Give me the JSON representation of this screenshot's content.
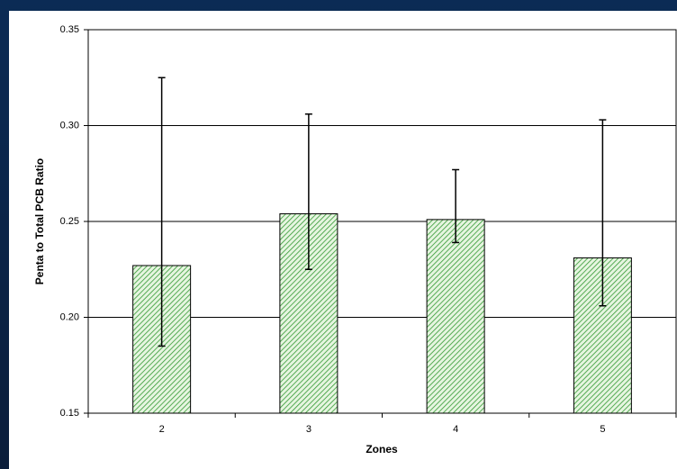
{
  "chart_data": {
    "type": "bar",
    "x_label": "Zones",
    "y_label": "Penta to Total PCB Ratio",
    "categories": [
      "2",
      "3",
      "4",
      "5"
    ],
    "values": [
      0.227,
      0.254,
      0.251,
      0.231
    ],
    "error_plus": [
      0.098,
      0.052,
      0.026,
      0.072
    ],
    "error_minus": [
      0.042,
      0.029,
      0.012,
      0.025
    ],
    "color": "#339933",
    "ylim": [
      0.15,
      0.35
    ],
    "yticks": [
      0.15,
      {
        "value": 0.2,
        "label": "0.20"
      },
      0.25,
      {
        "value": 0.3,
        "label": "0.30"
      },
      0.35
    ],
    "grid": true
  }
}
